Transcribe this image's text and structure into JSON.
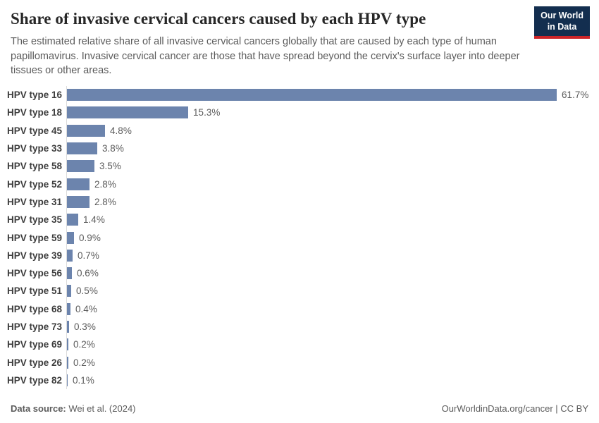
{
  "header": {
    "title": "Share of invasive cervical cancers caused by each HPV type",
    "subtitle": "The estimated relative share of all invasive cervical cancers globally that are caused by each type of human papillomavirus. Invasive cervical cancer are those that have spread beyond the cervix's surface layer into deeper tissues or other areas.",
    "logo": {
      "line1": "Our World",
      "line2": "in Data",
      "background_color": "#132e4f",
      "accent_color": "#cc2428"
    }
  },
  "chart_data": {
    "type": "bar",
    "orientation": "horizontal",
    "title": "Share of invasive cervical cancers caused by each HPV type",
    "xlabel": "",
    "ylabel": "",
    "xlim": [
      0,
      66
    ],
    "grid": false,
    "legend": false,
    "bar_color": "#6c84ad",
    "categories": [
      "HPV type 16",
      "HPV type 18",
      "HPV type 45",
      "HPV type 33",
      "HPV type 58",
      "HPV type 52",
      "HPV type 31",
      "HPV type 35",
      "HPV type 59",
      "HPV type 39",
      "HPV type 56",
      "HPV type 51",
      "HPV type 68",
      "HPV type 73",
      "HPV type 69",
      "HPV type 26",
      "HPV type 82"
    ],
    "values": [
      61.7,
      15.3,
      4.8,
      3.8,
      3.5,
      2.8,
      2.8,
      1.4,
      0.9,
      0.7,
      0.6,
      0.5,
      0.4,
      0.3,
      0.2,
      0.2,
      0.1
    ],
    "value_labels": [
      "61.7%",
      "15.3%",
      "4.8%",
      "3.8%",
      "3.5%",
      "2.8%",
      "2.8%",
      "1.4%",
      "0.9%",
      "0.7%",
      "0.6%",
      "0.5%",
      "0.4%",
      "0.3%",
      "0.2%",
      "0.2%",
      "0.1%"
    ]
  },
  "footer": {
    "source_label": "Data source:",
    "source_value": "Wei et al. (2024)",
    "right_text": "OurWorldinData.org/cancer | CC BY"
  }
}
